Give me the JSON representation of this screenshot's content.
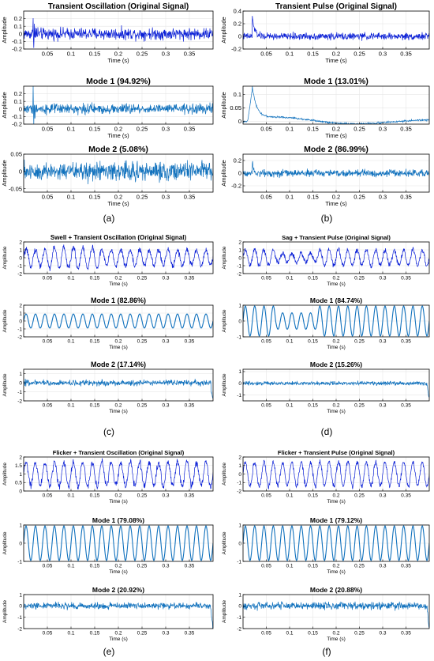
{
  "colors": {
    "signal": "#0a1fd6",
    "mode": "#1071bd",
    "axis": "#000000",
    "grid": "#e6e6e6",
    "background": "#ffffff"
  },
  "captions": [
    "(a)",
    "(b)",
    "(c)",
    "(d)",
    "(e)",
    "(f)"
  ],
  "chart_data": [
    {
      "panel": "(a)",
      "subplots": [
        {
          "type": "line",
          "title": "Transient Oscillation  (Original Signal)",
          "xlabel": "Time (s)",
          "ylabel": "Amplitude",
          "xlim": [
            0,
            0.4
          ],
          "ylim": [
            -0.2,
            0.3
          ],
          "xticks": [
            "0.05",
            "0.1",
            "0.15",
            "0.2",
            "0.25",
            "0.3",
            "0.35"
          ],
          "yticks": [
            "-0.2",
            "-0.1",
            "0",
            "0.1",
            "0.2"
          ],
          "grid": true,
          "series": [
            {
              "kind": "signal",
              "color": "signal",
              "noise": 0.07,
              "oscillation": 0,
              "transient": "oscillation",
              "transient_at": 0.02,
              "transient_amp": 0.25
            }
          ]
        },
        {
          "type": "line",
          "title": "Mode 1 (94.92%)",
          "xlabel": "Time (s)",
          "ylabel": "Amplitude",
          "xlim": [
            0,
            0.4
          ],
          "ylim": [
            -0.2,
            0.3
          ],
          "xticks": [
            "0.05",
            "0.1",
            "0.15",
            "0.2",
            "0.25",
            "0.3",
            "0.35"
          ],
          "yticks": [
            "-0.2",
            "-0.1",
            "0",
            "0.1",
            "0.2"
          ],
          "grid": true,
          "series": [
            {
              "kind": "mode",
              "color": "mode",
              "noise": 0.06,
              "oscillation": 0,
              "transient": "oscillation",
              "transient_at": 0.02,
              "transient_amp": 0.25
            }
          ]
        },
        {
          "type": "line",
          "title": "Mode 2 (5.08%)",
          "xlabel": "Time (s)",
          "ylabel": "Amplitude",
          "xlim": [
            0,
            0.4
          ],
          "ylim": [
            -0.06,
            0.05
          ],
          "xticks": [
            "0.05",
            "0.1",
            "0.15",
            "0.2",
            "0.25",
            "0.3",
            "0.35"
          ],
          "yticks": [
            "-0.05",
            "0",
            "0.05"
          ],
          "grid": true,
          "series": [
            {
              "kind": "mode",
              "color": "mode",
              "noise": 0.025,
              "oscillation": 0,
              "transient": "none"
            }
          ]
        }
      ]
    },
    {
      "panel": "(b)",
      "subplots": [
        {
          "type": "line",
          "title": "Transient Pulse  (Original Signal)",
          "xlabel": "Time (s)",
          "ylabel": "Amplitude",
          "xlim": [
            0,
            0.4
          ],
          "ylim": [
            -0.2,
            0.4
          ],
          "xticks": [
            "0.05",
            "0.1",
            "0.15",
            "0.2",
            "0.25",
            "0.3",
            "0.35"
          ],
          "yticks": [
            "-0.2",
            "0",
            "0.2",
            "0.4"
          ],
          "grid": true,
          "series": [
            {
              "kind": "signal",
              "color": "signal",
              "noise": 0.05,
              "oscillation": 0,
              "transient": "pulse",
              "transient_at": 0.02,
              "transient_amp": 0.3
            }
          ]
        },
        {
          "type": "line",
          "title": "Mode 1 (13.01%)",
          "xlabel": "Time (s)",
          "ylabel": "Amplitude",
          "xlim": [
            0,
            0.4
          ],
          "ylim": [
            -0.01,
            0.13
          ],
          "xticks": [
            "0.05",
            "0.1",
            "0.15",
            "0.2",
            "0.25",
            "0.3",
            "0.35"
          ],
          "yticks": [
            "0",
            "0.05",
            "0.1"
          ],
          "grid": true,
          "series": [
            {
              "kind": "mode",
              "color": "mode",
              "noise": 0.003,
              "oscillation": 0,
              "transient": "decay",
              "transient_at": 0.02,
              "transient_amp": 0.12
            }
          ]
        },
        {
          "type": "line",
          "title": "Mode 2 (86.99%)",
          "xlabel": "Time (s)",
          "ylabel": "Amplitude",
          "xlim": [
            0,
            0.4
          ],
          "ylim": [
            -0.3,
            0.3
          ],
          "xticks": [
            "0.05",
            "0.1",
            "0.15",
            "0.2",
            "0.25",
            "0.3",
            "0.35"
          ],
          "yticks": [
            "-0.2",
            "0",
            "0.2"
          ],
          "grid": true,
          "series": [
            {
              "kind": "mode",
              "color": "mode",
              "noise": 0.05,
              "oscillation": 0,
              "transient": "spike",
              "transient_at": 0.02,
              "transient_amp": 0.2
            }
          ]
        }
      ]
    },
    {
      "panel": "(c)",
      "subplots": [
        {
          "type": "line",
          "title": "Swell + Transient Oscillation (Original Signal)",
          "xlabel": "Time (s)",
          "ylabel": "Amplitude",
          "xlim": [
            0,
            0.4
          ],
          "ylim": [
            -2,
            2
          ],
          "xticks": [
            "0.05",
            "0.1",
            "0.15",
            "0.2",
            "0.25",
            "0.3",
            "0.35"
          ],
          "yticks": [
            "-2",
            "-1",
            "0",
            "1",
            "2"
          ],
          "grid": true,
          "series": [
            {
              "kind": "signal",
              "color": "signal",
              "noise": 0.35,
              "oscillation": 1.0,
              "cycles": 20,
              "swell": [
                0.05,
                0.16,
                1.35
              ],
              "transient": "none"
            }
          ]
        },
        {
          "type": "line",
          "title": "Mode 1 (82.86%)",
          "xlabel": "Time (s)",
          "ylabel": "Amplitude",
          "xlim": [
            0,
            0.4
          ],
          "ylim": [
            -2,
            2
          ],
          "xticks": [
            "0.05",
            "0.1",
            "0.15",
            "0.2",
            "0.25",
            "0.3",
            "0.35"
          ],
          "yticks": [
            "-2",
            "-1",
            "0",
            "1",
            "2"
          ],
          "grid": true,
          "series": [
            {
              "kind": "mode",
              "color": "mode",
              "noise": 0,
              "oscillation": 0.9,
              "cycles": 20,
              "transient": "none"
            }
          ]
        },
        {
          "type": "line",
          "title": "Mode 2 (17.14%)",
          "xlabel": "Time (s)",
          "ylabel": "Amplitude",
          "xlim": [
            0,
            0.4
          ],
          "ylim": [
            -2,
            1.5
          ],
          "xticks": [
            "0.05",
            "0.1",
            "0.15",
            "0.2",
            "0.25",
            "0.3",
            "0.35"
          ],
          "yticks": [
            "-2",
            "-1",
            "0",
            "1"
          ],
          "grid": true,
          "series": [
            {
              "kind": "mode",
              "color": "mode",
              "noise": 0.3,
              "oscillation": 0,
              "transient": "end-drop",
              "transient_at": 0.395,
              "transient_amp": -1.8
            }
          ]
        }
      ]
    },
    {
      "panel": "(d)",
      "subplots": [
        {
          "type": "line",
          "title": "Sag + Transient Pulse (Original Signal)",
          "xlabel": "Time (s)",
          "ylabel": "Amplitude",
          "xlim": [
            0,
            0.4
          ],
          "ylim": [
            -2,
            2
          ],
          "xticks": [
            "0.05",
            "0.1",
            "0.15",
            "0.2",
            "0.25",
            "0.3",
            "0.35"
          ],
          "yticks": [
            "-2",
            "-1",
            "0",
            "1",
            "2"
          ],
          "grid": true,
          "series": [
            {
              "kind": "signal",
              "color": "signal",
              "noise": 0.3,
              "oscillation": 1.0,
              "cycles": 20,
              "swell": [
                0.07,
                0.16,
                0.55
              ],
              "transient": "none"
            }
          ]
        },
        {
          "type": "line",
          "title": "Mode 1 (84.74%)",
          "xlabel": "Time (s)",
          "ylabel": "Amplitude",
          "xlim": [
            0,
            0.4
          ],
          "ylim": [
            -1,
            1
          ],
          "xticks": [
            "0.05",
            "0.1",
            "0.15",
            "0.2",
            "0.25",
            "0.3",
            "0.35"
          ],
          "yticks": [
            "-1",
            "0",
            "1"
          ],
          "grid": true,
          "series": [
            {
              "kind": "mode",
              "color": "mode",
              "noise": 0,
              "oscillation": 0.95,
              "cycles": 20,
              "swell": [
                0.07,
                0.16,
                0.55
              ],
              "transient": "none"
            }
          ]
        },
        {
          "type": "line",
          "title": "Mode 2 (15.26%)",
          "xlabel": "Time (s)",
          "ylabel": "Amplitude",
          "xlim": [
            0,
            0.4
          ],
          "ylim": [
            -1.5,
            1.2
          ],
          "xticks": [
            "0.05",
            "0.1",
            "0.15",
            "0.2",
            "0.25",
            "0.3",
            "0.35"
          ],
          "yticks": [
            "-1",
            "0",
            "1"
          ],
          "grid": true,
          "series": [
            {
              "kind": "mode",
              "color": "mode",
              "noise": 0.15,
              "oscillation": 0,
              "transient": "end-drop",
              "transient_at": 0.395,
              "transient_amp": -1.3
            }
          ]
        }
      ]
    },
    {
      "panel": "(e)",
      "subplots": [
        {
          "type": "line",
          "title": "Flicker + Transient Oscillation (Original Signal)",
          "xlabel": "Time (s)",
          "ylabel": "Amplitude",
          "xlim": [
            0,
            0.4
          ],
          "ylim": [
            0,
            2
          ],
          "xticks": [
            "0.05",
            "0.1",
            "0.15",
            "0.2",
            "0.25",
            "0.3",
            "0.35"
          ],
          "yticks": [
            "0",
            "0.5",
            "1",
            "1.5",
            "2"
          ],
          "grid": true,
          "series": [
            {
              "kind": "signal",
              "color": "signal",
              "noise": 0.2,
              "oscillation": 0.7,
              "offset": 1.0,
              "cycles": 20,
              "transient": "none"
            }
          ]
        },
        {
          "type": "line",
          "title": "Mode 1 (79.08%)",
          "xlabel": "Time (s)",
          "ylabel": "Amplitude",
          "xlim": [
            0,
            0.4
          ],
          "ylim": [
            -1,
            1
          ],
          "xticks": [
            "0.05",
            "0.1",
            "0.15",
            "0.2",
            "0.25",
            "0.3",
            "0.35"
          ],
          "yticks": [
            "-1",
            "0",
            "1"
          ],
          "grid": true,
          "series": [
            {
              "kind": "mode",
              "color": "mode",
              "noise": 0,
              "oscillation": 0.95,
              "cycles": 20,
              "transient": "none"
            }
          ]
        },
        {
          "type": "line",
          "title": "Mode 2 (20.92%)",
          "xlabel": "Time (s)",
          "ylabel": "Amplitude",
          "xlim": [
            0,
            0.4
          ],
          "ylim": [
            -2,
            1
          ],
          "xticks": [
            "0.05",
            "0.1",
            "0.15",
            "0.2",
            "0.25",
            "0.3",
            "0.35"
          ],
          "yticks": [
            "-2",
            "-1",
            "0",
            "1"
          ],
          "grid": true,
          "series": [
            {
              "kind": "mode",
              "color": "mode",
              "noise": 0.25,
              "oscillation": 0,
              "transient": "end-drop",
              "transient_at": 0.395,
              "transient_amp": -1.8
            }
          ]
        }
      ]
    },
    {
      "panel": "(f)",
      "subplots": [
        {
          "type": "line",
          "title": "Flicker + Transient Pulse (Original Signal)",
          "xlabel": "Time (s)",
          "ylabel": "Amplitude",
          "xlim": [
            0,
            0.4
          ],
          "ylim": [
            -2,
            2
          ],
          "xticks": [
            "0.05",
            "0.1",
            "0.15",
            "0.2",
            "0.25",
            "0.3",
            "0.35"
          ],
          "yticks": [
            "-2",
            "-1",
            "0",
            "1",
            "2"
          ],
          "grid": true,
          "series": [
            {
              "kind": "signal",
              "color": "signal",
              "noise": 0.3,
              "oscillation": 1.4,
              "cycles": 20,
              "transient": "none"
            }
          ]
        },
        {
          "type": "line",
          "title": "Mode 1 (79.12%)",
          "xlabel": "Time (s)",
          "ylabel": "Amplitude",
          "xlim": [
            0,
            0.4
          ],
          "ylim": [
            -1,
            1
          ],
          "xticks": [
            "0.05",
            "0.1",
            "0.15",
            "0.2",
            "0.25",
            "0.3",
            "0.35"
          ],
          "yticks": [
            "-1",
            "0",
            "1"
          ],
          "grid": true,
          "series": [
            {
              "kind": "mode",
              "color": "mode",
              "noise": 0,
              "oscillation": 0.95,
              "cycles": 20,
              "transient": "none"
            }
          ]
        },
        {
          "type": "line",
          "title": "Mode 2 (20.88%)",
          "xlabel": "Time (s)",
          "ylabel": "Amplitude",
          "xlim": [
            0,
            0.4
          ],
          "ylim": [
            -2,
            1
          ],
          "xticks": [
            "0.05",
            "0.1",
            "0.15",
            "0.2",
            "0.25",
            "0.3",
            "0.35"
          ],
          "yticks": [
            "-2",
            "-1",
            "0",
            "1"
          ],
          "grid": true,
          "series": [
            {
              "kind": "mode",
              "color": "mode",
              "noise": 0.3,
              "oscillation": 0,
              "transient": "end-drop",
              "transient_at": 0.395,
              "transient_amp": -1.8
            }
          ]
        }
      ]
    }
  ]
}
